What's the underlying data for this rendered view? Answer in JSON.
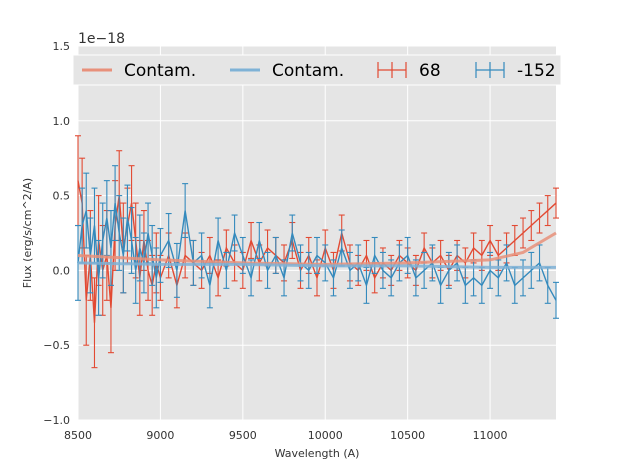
{
  "chart_data": {
    "type": "line",
    "xlabel": "Wavelength (A)",
    "ylabel": "Flux (erg/s/cm^2/A)",
    "offset_text": "1e−18",
    "xlim": [
      8500,
      11400
    ],
    "ylim": [
      -1.0,
      1.5
    ],
    "xticks": [
      8500,
      9000,
      9500,
      10000,
      10500,
      11000
    ],
    "yticks": [
      -1.0,
      -0.5,
      0.0,
      0.5,
      1.0,
      1.5
    ],
    "xtick_labels": [
      "8500",
      "9000",
      "9500",
      "10000",
      "10500",
      "11000"
    ],
    "ytick_labels": [
      "−1.0",
      "−0.5",
      "0.0",
      "0.5",
      "1.0",
      "1.5"
    ],
    "grid": true,
    "legend": {
      "placement": "top",
      "entries": [
        {
          "label": "Contam.",
          "kind": "line",
          "color": "#E8907A"
        },
        {
          "label": "Contam.",
          "kind": "line",
          "color": "#7FB2D6"
        },
        {
          "label": "68",
          "kind": "errorbar",
          "color": "#E24A33"
        },
        {
          "label": "-152",
          "kind": "errorbar",
          "color": "#348ABD"
        }
      ]
    },
    "series": [
      {
        "name": "68",
        "color": "#E24A33",
        "x": [
          8500,
          8525,
          8550,
          8575,
          8600,
          8625,
          8650,
          8675,
          8700,
          8725,
          8750,
          8775,
          8800,
          8825,
          8850,
          8875,
          8900,
          8925,
          8950,
          8975,
          9000,
          9050,
          9100,
          9150,
          9200,
          9250,
          9300,
          9350,
          9400,
          9450,
          9500,
          9550,
          9600,
          9650,
          9700,
          9750,
          9800,
          9850,
          9900,
          9950,
          10000,
          10050,
          10100,
          10150,
          10200,
          10250,
          10300,
          10350,
          10400,
          10450,
          10500,
          10550,
          10600,
          10650,
          10700,
          10750,
          10800,
          10850,
          10900,
          10950,
          11000,
          11050,
          11100,
          11150,
          11200,
          11250,
          11300,
          11350,
          11400
        ],
        "y": [
          0.6,
          0.45,
          -0.2,
          0.1,
          -0.35,
          0.2,
          0.0,
          0.1,
          -0.25,
          0.3,
          0.5,
          0.15,
          0.3,
          0.45,
          0.2,
          -0.05,
          0.2,
          0.0,
          -0.1,
          0.05,
          -0.05,
          0.1,
          -0.1,
          0.1,
          0.05,
          0.0,
          0.1,
          -0.05,
          0.15,
          0.05,
          0.0,
          0.2,
          0.05,
          0.15,
          0.1,
          0.05,
          0.2,
          0.0,
          0.1,
          -0.05,
          0.15,
          0.0,
          0.25,
          0.05,
          0.0,
          0.1,
          -0.05,
          0.05,
          0.0,
          0.1,
          0.05,
          0.0,
          0.15,
          0.05,
          0.1,
          0.0,
          0.1,
          0.05,
          0.15,
          0.1,
          0.2,
          0.1,
          0.15,
          0.2,
          0.25,
          0.3,
          0.35,
          0.4,
          0.45
        ],
        "yerr": [
          0.3,
          0.3,
          0.3,
          0.3,
          0.3,
          0.3,
          0.3,
          0.3,
          0.3,
          0.3,
          0.3,
          0.3,
          0.25,
          0.25,
          0.25,
          0.25,
          0.2,
          0.2,
          0.2,
          0.2,
          0.15,
          0.15,
          0.15,
          0.15,
          0.15,
          0.12,
          0.12,
          0.12,
          0.12,
          0.12,
          0.12,
          0.12,
          0.12,
          0.12,
          0.12,
          0.12,
          0.12,
          0.12,
          0.12,
          0.12,
          0.12,
          0.12,
          0.12,
          0.12,
          0.1,
          0.1,
          0.1,
          0.1,
          0.1,
          0.1,
          0.1,
          0.1,
          0.1,
          0.1,
          0.1,
          0.1,
          0.1,
          0.1,
          0.1,
          0.1,
          0.1,
          0.1,
          0.1,
          0.1,
          0.1,
          0.1,
          0.1,
          0.1,
          0.1
        ]
      },
      {
        "name": "-152",
        "color": "#348ABD",
        "x": [
          8500,
          8525,
          8550,
          8575,
          8600,
          8625,
          8650,
          8675,
          8700,
          8725,
          8750,
          8775,
          8800,
          8825,
          8850,
          8875,
          8900,
          8925,
          8950,
          8975,
          9000,
          9050,
          9100,
          9150,
          9200,
          9250,
          9300,
          9350,
          9400,
          9450,
          9500,
          9550,
          9600,
          9650,
          9700,
          9750,
          9800,
          9850,
          9900,
          9950,
          10000,
          10050,
          10100,
          10150,
          10200,
          10250,
          10300,
          10350,
          10400,
          10450,
          10500,
          10550,
          10600,
          10650,
          10700,
          10750,
          10800,
          10850,
          10900,
          10950,
          11000,
          11050,
          11100,
          11150,
          11200,
          11250,
          11300,
          11350,
          11400
        ],
        "y": [
          0.05,
          0.3,
          0.4,
          0.1,
          0.3,
          -0.05,
          0.2,
          0.35,
          0.15,
          0.45,
          0.25,
          0.1,
          0.35,
          0.2,
          0.0,
          0.15,
          0.05,
          0.25,
          0.1,
          -0.05,
          0.1,
          0.2,
          0.0,
          0.4,
          0.05,
          0.1,
          -0.1,
          0.2,
          0.0,
          0.25,
          0.1,
          -0.05,
          0.2,
          0.0,
          0.1,
          -0.05,
          0.25,
          0.05,
          0.0,
          0.1,
          0.05,
          -0.05,
          0.15,
          0.0,
          0.05,
          -0.1,
          0.1,
          0.0,
          -0.05,
          0.05,
          0.1,
          -0.05,
          0.0,
          0.05,
          -0.1,
          0.0,
          0.05,
          -0.1,
          -0.05,
          -0.1,
          0.0,
          -0.05,
          0.05,
          -0.1,
          -0.05,
          0.0,
          0.05,
          -0.1,
          -0.2
        ],
        "yerr": [
          0.25,
          0.25,
          0.25,
          0.25,
          0.25,
          0.25,
          0.25,
          0.25,
          0.25,
          0.25,
          0.25,
          0.25,
          0.22,
          0.22,
          0.22,
          0.22,
          0.2,
          0.2,
          0.2,
          0.2,
          0.18,
          0.18,
          0.18,
          0.18,
          0.15,
          0.15,
          0.15,
          0.15,
          0.12,
          0.12,
          0.12,
          0.12,
          0.12,
          0.12,
          0.12,
          0.12,
          0.12,
          0.12,
          0.12,
          0.12,
          0.12,
          0.12,
          0.12,
          0.12,
          0.12,
          0.12,
          0.12,
          0.12,
          0.12,
          0.12,
          0.12,
          0.12,
          0.12,
          0.12,
          0.12,
          0.12,
          0.12,
          0.12,
          0.12,
          0.12,
          0.12,
          0.12,
          0.12,
          0.12,
          0.12,
          0.12,
          0.12,
          0.12,
          0.12
        ]
      },
      {
        "name": "Contam.",
        "color": "#E8907A",
        "x": [
          8500,
          9000,
          9500,
          10000,
          10500,
          11000,
          11200,
          11400
        ],
        "y": [
          0.1,
          0.07,
          0.05,
          0.04,
          0.05,
          0.07,
          0.12,
          0.25
        ]
      },
      {
        "name": "Contam.",
        "color": "#7FB2D6",
        "x": [
          8500,
          9000,
          9500,
          10000,
          10500,
          11000,
          11400
        ],
        "y": [
          0.05,
          0.04,
          0.04,
          0.03,
          0.03,
          0.02,
          0.02
        ]
      }
    ]
  }
}
